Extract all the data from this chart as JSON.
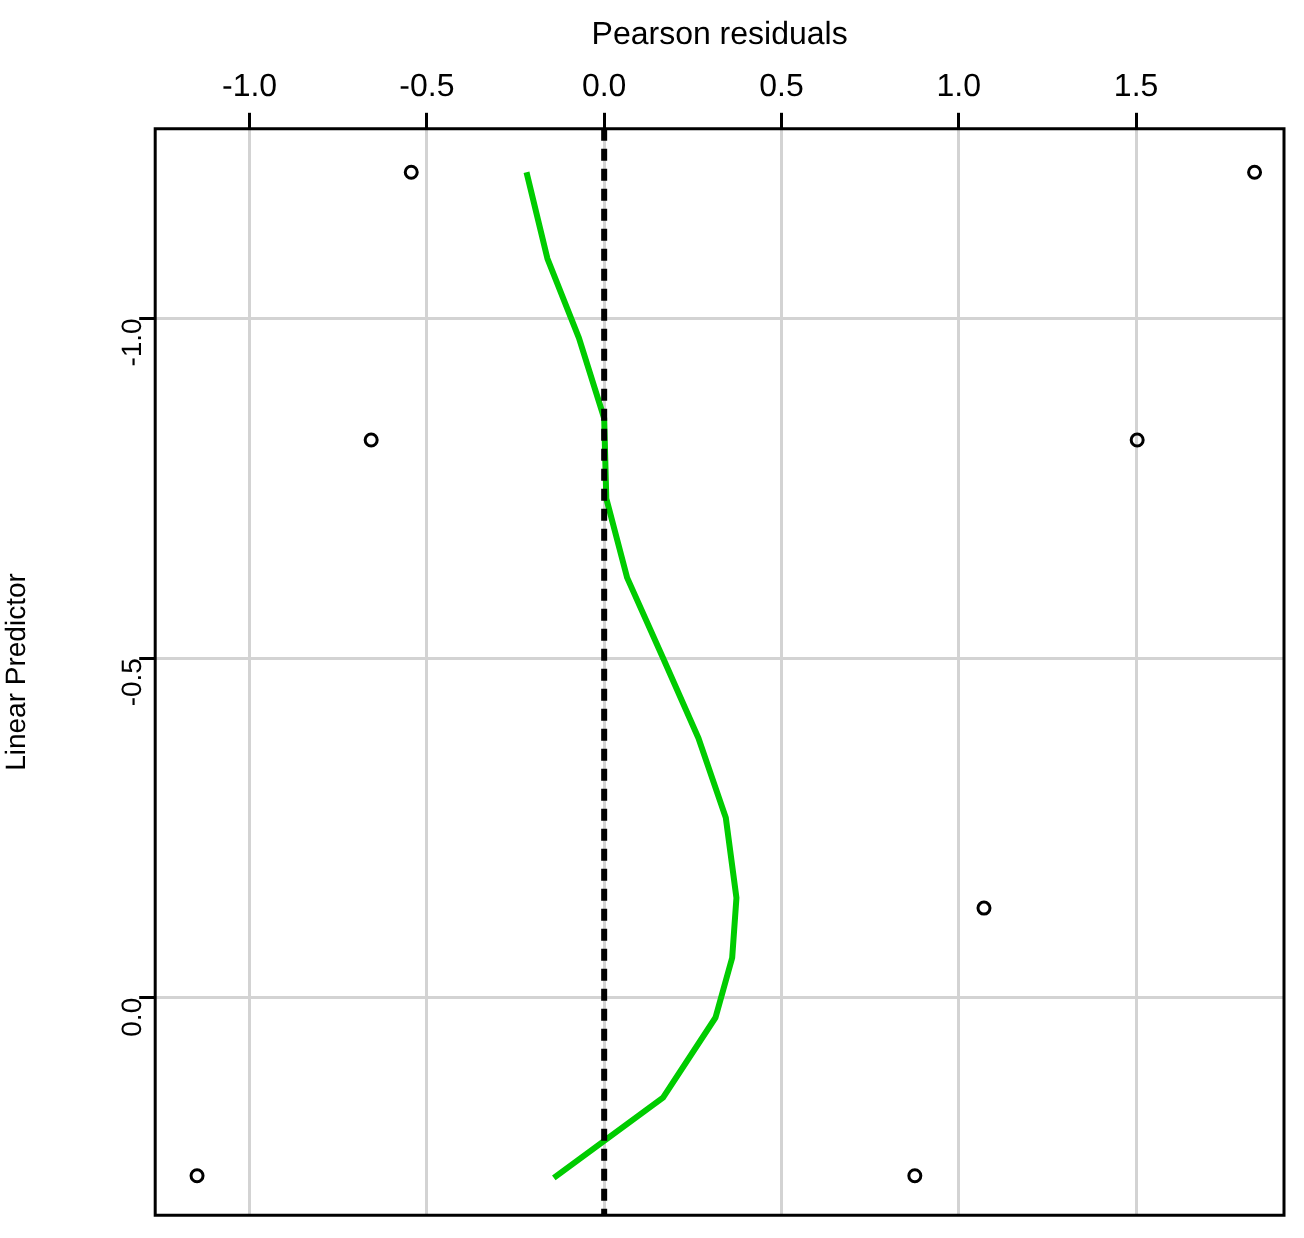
{
  "chart_data": {
    "type": "scatter",
    "xlabel": "Pearson residuals",
    "ylabel": "Linear Predictor",
    "xlim": [
      -1.266,
      1.917
    ],
    "ylim": [
      0.32,
      -1.279
    ],
    "xticks": [
      {
        "value": -1,
        "label": "-1.0"
      },
      -0.5,
      {
        "value": 0,
        "label": "0.0"
      },
      0.5,
      {
        "value": 1,
        "label": "1.0"
      },
      1.5
    ],
    "yticks": [
      {
        "value": -1,
        "label": "-1.0"
      },
      -0.5,
      {
        "value": 0,
        "label": "0.0"
      }
    ],
    "grid": true,
    "marker": "circle",
    "ref_lines": [
      {
        "axis": "x",
        "value": 0,
        "line_style": "dashed",
        "color": "#000000"
      }
    ],
    "series": [
      {
        "color": "#000000",
        "x": [
          -0.544,
          1.834,
          -0.657,
          1.503,
          1.071,
          -1.148,
          0.876
        ],
        "values": [
          -1.215,
          -1.215,
          -0.821,
          -0.821,
          -0.132,
          0.262,
          0.262
        ]
      },
      {
        "type": "line",
        "color": "#00cc00",
        "marker": "none",
        "x": [
          -0.219,
          -0.16,
          -0.071,
          0,
          0.006,
          0.065,
          0.166,
          0.266,
          0.343,
          0.373,
          0.361,
          0.314,
          0.166,
          -0.142
        ],
        "values": [
          -1.215,
          -1.088,
          -0.971,
          -0.853,
          -0.735,
          -0.618,
          -0.5,
          -0.382,
          -0.265,
          -0.147,
          -0.059,
          0.029,
          0.147,
          0.265
        ]
      }
    ]
  }
}
